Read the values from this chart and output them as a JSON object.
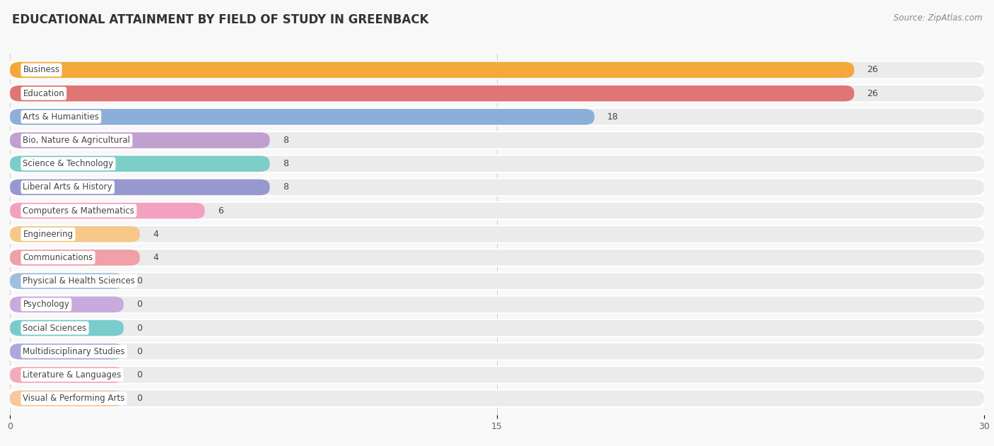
{
  "title": "EDUCATIONAL ATTAINMENT BY FIELD OF STUDY IN GREENBACK",
  "source": "Source: ZipAtlas.com",
  "categories": [
    "Business",
    "Education",
    "Arts & Humanities",
    "Bio, Nature & Agricultural",
    "Science & Technology",
    "Liberal Arts & History",
    "Computers & Mathematics",
    "Engineering",
    "Communications",
    "Physical & Health Sciences",
    "Psychology",
    "Social Sciences",
    "Multidisciplinary Studies",
    "Literature & Languages",
    "Visual & Performing Arts"
  ],
  "values": [
    26,
    26,
    18,
    8,
    8,
    8,
    6,
    4,
    4,
    0,
    0,
    0,
    0,
    0,
    0
  ],
  "bar_colors": [
    "#F5A83A",
    "#E07575",
    "#8BAFD8",
    "#C0A0D0",
    "#7DCEC8",
    "#9898D0",
    "#F4A0C0",
    "#F5C888",
    "#F0A0A8",
    "#A0BEDE",
    "#C8AADC",
    "#78CCCC",
    "#AAAAD8",
    "#F4AABC",
    "#F5C8A0"
  ],
  "xlim": [
    0,
    30
  ],
  "xticks": [
    0,
    15,
    30
  ],
  "background_color": "#f8f8f8",
  "row_bg_color": "#ffffff",
  "bar_bg_color": "#ebebeb",
  "title_fontsize": 12,
  "source_fontsize": 8.5,
  "bar_height": 0.68,
  "font_color": "#444444",
  "zero_stub": 3.5
}
